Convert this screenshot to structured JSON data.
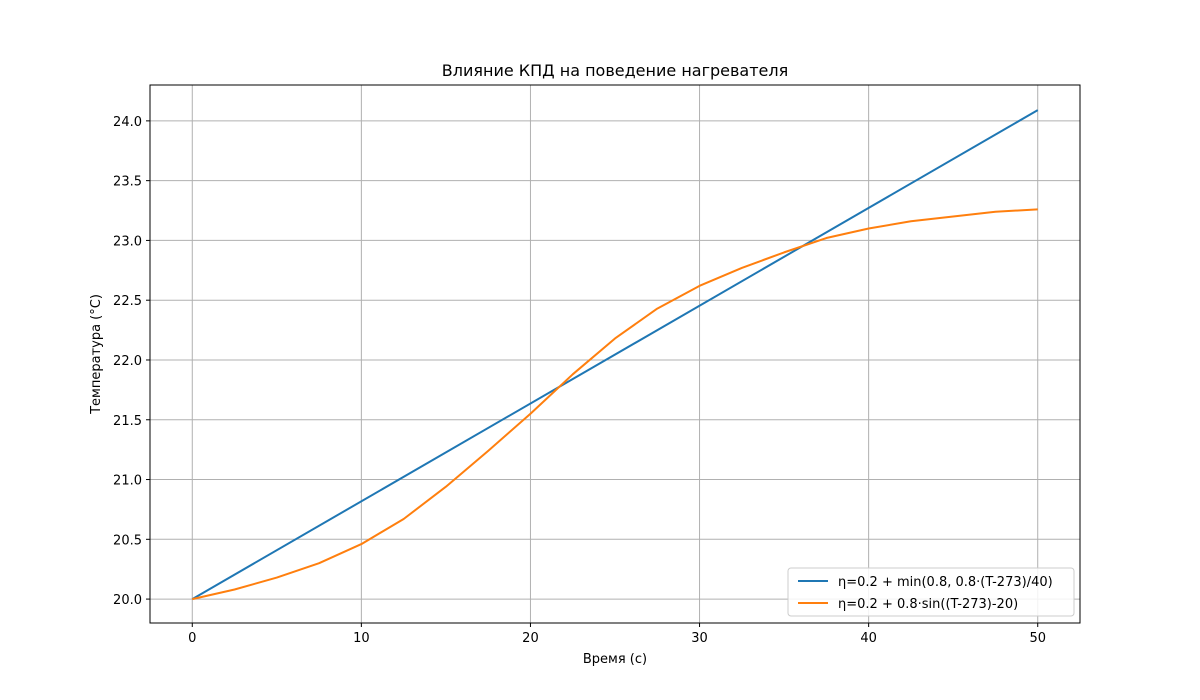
{
  "chart_data": {
    "type": "line",
    "title": "Влияние  КПД на поведение нагревателя",
    "xlabel": "Время (с)",
    "ylabel": "Температура (°C)",
    "xlim": [
      -2.5,
      52.5
    ],
    "ylim": [
      19.8,
      24.3
    ],
    "xticks": [
      0,
      10,
      20,
      30,
      40,
      50
    ],
    "yticks": [
      20.0,
      20.5,
      21.0,
      21.5,
      22.0,
      22.5,
      23.0,
      23.5,
      24.0
    ],
    "xtick_labels": [
      "0",
      "10",
      "20",
      "30",
      "40",
      "50"
    ],
    "ytick_labels": [
      "20.0",
      "20.5",
      "21.0",
      "21.5",
      "22.0",
      "22.5",
      "23.0",
      "23.5",
      "24.0"
    ],
    "grid": true,
    "legend_position": "lower-right",
    "series": [
      {
        "name": "η=0.2 + min(0.8, 0.8·(T-273)/40)",
        "color": "#1f77b4",
        "x": [
          0,
          50
        ],
        "y": [
          20.0,
          24.09
        ]
      },
      {
        "name": "η=0.2 + 0.8·sin((T-273)-20)",
        "color": "#ff7f0e",
        "x": [
          0,
          2.5,
          5,
          7.5,
          10,
          12.5,
          15,
          17.5,
          20,
          22.5,
          25,
          27.5,
          30,
          32.5,
          35,
          37.5,
          40,
          42.5,
          45,
          47.5,
          50
        ],
        "y": [
          20.0,
          20.08,
          20.18,
          20.3,
          20.46,
          20.67,
          20.94,
          21.24,
          21.55,
          21.88,
          22.18,
          22.43,
          22.62,
          22.77,
          22.9,
          23.02,
          23.1,
          23.16,
          23.2,
          23.24,
          23.26
        ]
      }
    ]
  }
}
